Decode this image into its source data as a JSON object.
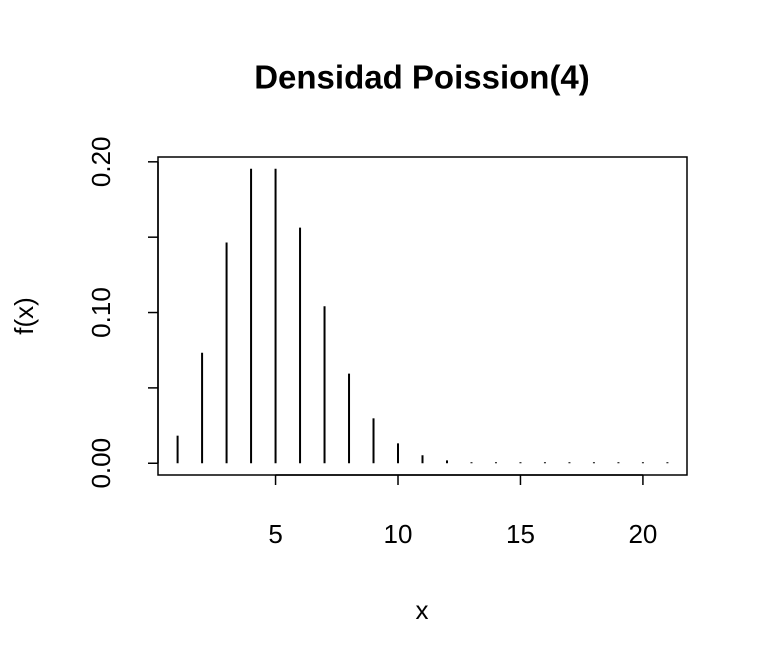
{
  "chart_data": {
    "type": "stem",
    "title": "Densidad Poission(4)",
    "x_label": "x",
    "y_label": "f(x)",
    "x": [
      1,
      2,
      3,
      4,
      5,
      6,
      7,
      8,
      9,
      10,
      11,
      12,
      13,
      14,
      15,
      16,
      17,
      18,
      19,
      20,
      21
    ],
    "values": [
      0.0183,
      0.0733,
      0.1465,
      0.1954,
      0.1954,
      0.1563,
      0.1042,
      0.0595,
      0.0298,
      0.0132,
      0.0053,
      0.0019,
      0.0006,
      0.0002,
      6e-05,
      2e-05,
      4e-06,
      1e-06,
      2e-07,
      4e-08,
      1e-08
    ],
    "color": "#000000",
    "xlim": [
      0.2,
      21.8
    ],
    "xticks": [
      5,
      10,
      15,
      20
    ],
    "ylim": [
      -0.0078,
      0.2032
    ],
    "yticks": [
      {
        "value": 0,
        "label": "0.00"
      },
      {
        "value": 0.05,
        "label": null
      },
      {
        "value": 0.1,
        "label": "0.10"
      },
      {
        "value": 0.15,
        "label": null
      },
      {
        "value": 0.2,
        "label": "0.20"
      }
    ],
    "grid": false
  }
}
